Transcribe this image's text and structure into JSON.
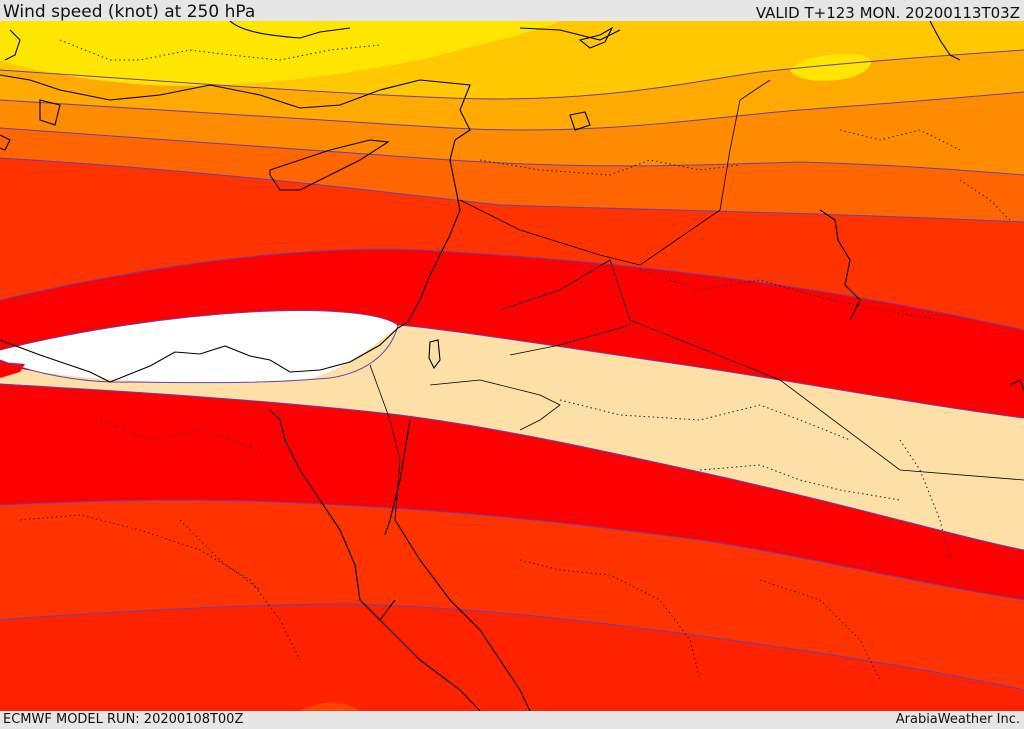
{
  "header": {
    "title": "Wind speed (knot) at 250 hPa",
    "valid": "VALID T+123 MON. 20200113T03Z"
  },
  "footer": {
    "model_run": "ECMWF MODEL RUN: 20200108T00Z",
    "credit": "ArabiaWeather Inc."
  },
  "colors": {
    "band_yellow": "#ffe600",
    "band_gold": "#ffc800",
    "band_light_orange": "#ffaa00",
    "band_orange": "#ff8c00",
    "band_dark_orange": "#ff6600",
    "band_red_orange": "#ff3300",
    "band_red": "#ff0000",
    "band_peach": "#fde0a8",
    "band_white": "#ffffff",
    "contour_line": "#6a3fb0",
    "coastline": "#000000"
  }
}
